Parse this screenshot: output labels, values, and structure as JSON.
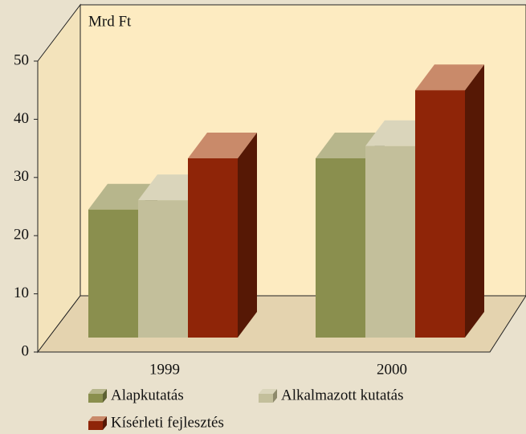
{
  "chart_data": {
    "type": "bar3d",
    "ylabel": "Mrd Ft",
    "categories": [
      "1999",
      "2000"
    ],
    "series": [
      {
        "name": "Alapkutatás",
        "color": "#8a8f4e",
        "values": [
          22,
          30.8
        ]
      },
      {
        "name": "Alkalmazott kutatás",
        "color": "#c3bf9b",
        "values": [
          23.6,
          32.9
        ]
      },
      {
        "name": "Kísérleti fejlesztés",
        "color": "#8f2508",
        "values": [
          30.8,
          42.5
        ]
      }
    ],
    "ylim": [
      0,
      50
    ],
    "yticks": [
      0,
      10,
      20,
      30,
      40,
      50
    ]
  }
}
